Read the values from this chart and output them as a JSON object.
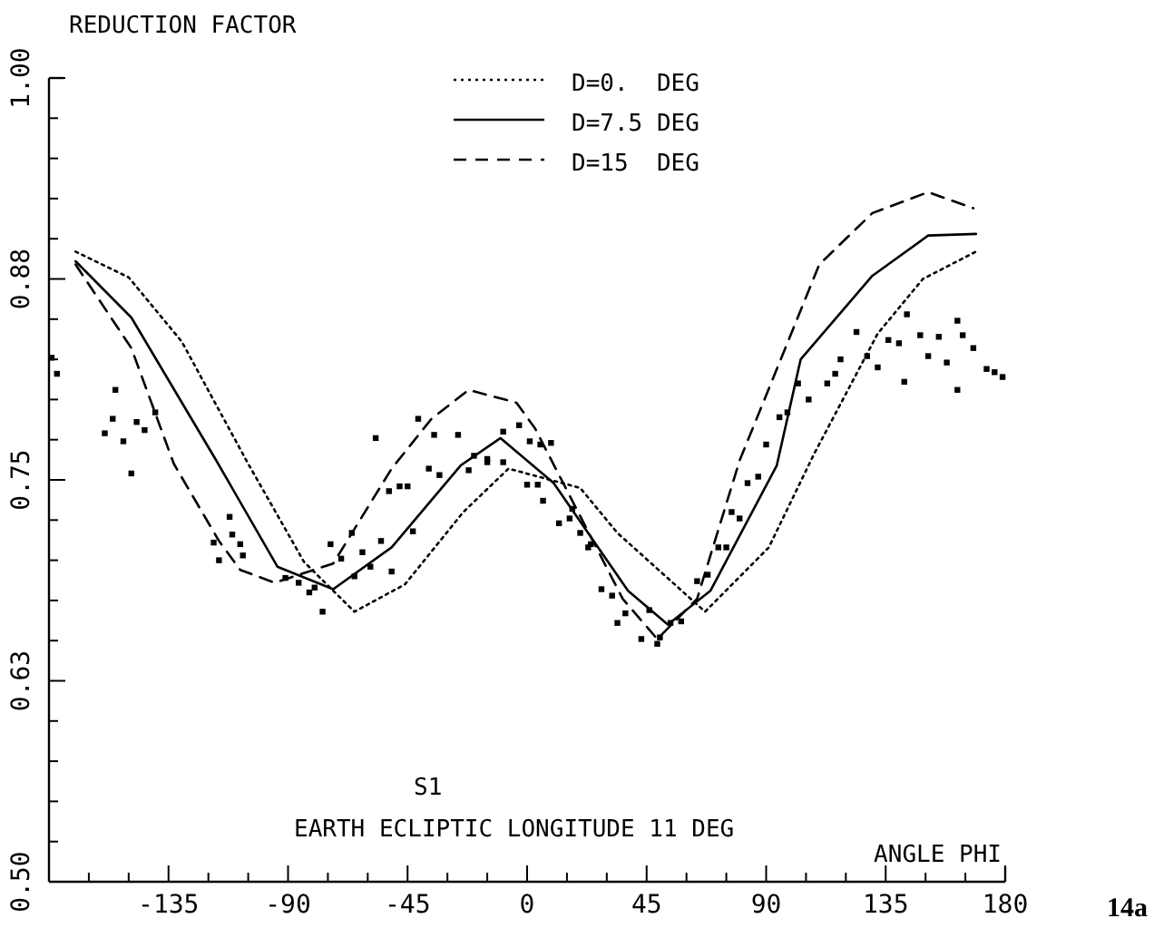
{
  "chart_data": {
    "type": "line",
    "ylabel": "REDUCTION FACTOR",
    "xlabel": "ANGLE PHI",
    "legend": "top",
    "grid": false,
    "annotations": [
      "S1",
      "EARTH ECLIPTIC LONGITUDE 11 DEG",
      "14a"
    ],
    "xlim": [
      -180,
      180
    ],
    "xticks": [
      {
        "value": -165,
        "label": null
      },
      {
        "value": -150,
        "label": null
      },
      -135,
      {
        "value": -120,
        "label": null
      },
      {
        "value": -105,
        "label": null
      },
      -90,
      {
        "value": -75,
        "label": null
      },
      {
        "value": -60,
        "label": null
      },
      -45,
      {
        "value": -30,
        "label": null
      },
      {
        "value": -15,
        "label": null
      },
      0,
      {
        "value": 15,
        "label": null
      },
      {
        "value": 30,
        "label": null
      },
      45,
      {
        "value": 60,
        "label": null
      },
      {
        "value": 75,
        "label": null
      },
      90,
      {
        "value": 105,
        "label": null
      },
      {
        "value": 120,
        "label": null
      },
      135,
      {
        "value": 150,
        "label": null
      },
      {
        "value": 165,
        "label": null
      },
      180
    ],
    "ylim": [
      0.5,
      1.0
    ],
    "yticks": [
      {
        "value": 0.5,
        "label": "0.50"
      },
      {
        "value": 0.525,
        "label": null
      },
      {
        "value": 0.55,
        "label": null
      },
      {
        "value": 0.575,
        "label": null
      },
      {
        "value": 0.6,
        "label": null
      },
      {
        "value": 0.625,
        "label": "0.63"
      },
      {
        "value": 0.65,
        "label": null
      },
      {
        "value": 0.675,
        "label": null
      },
      {
        "value": 0.7,
        "label": null
      },
      {
        "value": 0.725,
        "label": null
      },
      {
        "value": 0.75,
        "label": "0.75"
      },
      {
        "value": 0.775,
        "label": null
      },
      {
        "value": 0.8,
        "label": null
      },
      {
        "value": 0.825,
        "label": null
      },
      {
        "value": 0.85,
        "label": null
      },
      {
        "value": 0.875,
        "label": "0.88"
      },
      {
        "value": 0.9,
        "label": null
      },
      {
        "value": 0.925,
        "label": null
      },
      {
        "value": 0.95,
        "label": null
      },
      {
        "value": 0.975,
        "label": null
      },
      {
        "value": 1.0,
        "label": "1.00"
      }
    ],
    "series": [
      {
        "name": "D=0.  DEG",
        "line_style": "dotted",
        "color": "#000000",
        "x": [
          -170,
          -150,
          -130,
          -105,
          -84,
          -65,
          -46,
          -24,
          -7,
          20,
          34,
          67,
          91,
          108,
          132,
          149,
          169
        ],
        "values": [
          0.892,
          0.876,
          0.836,
          0.76,
          0.699,
          0.668,
          0.685,
          0.73,
          0.757,
          0.745,
          0.717,
          0.668,
          0.708,
          0.766,
          0.841,
          0.875,
          0.892
        ]
      },
      {
        "name": "D=7.5 DEG",
        "line_style": "solid",
        "color": "#000000",
        "x": [
          -170,
          -149,
          -117,
          -94,
          -73,
          -51,
          -25,
          -10,
          10,
          38,
          53,
          69,
          94,
          103,
          130,
          151,
          169
        ],
        "values": [
          0.886,
          0.851,
          0.762,
          0.696,
          0.682,
          0.708,
          0.759,
          0.776,
          0.748,
          0.681,
          0.66,
          0.681,
          0.759,
          0.825,
          0.877,
          0.902,
          0.903
        ]
      },
      {
        "name": "D=15  DEG",
        "line_style": "dashed",
        "color": "#000000",
        "x": [
          -170,
          -149,
          -133,
          -116,
          -108,
          -95,
          -73,
          -51,
          -36,
          -22,
          -4,
          3,
          36,
          49,
          64,
          80,
          110,
          130,
          151,
          168
        ],
        "values": [
          0.884,
          0.832,
          0.76,
          0.712,
          0.694,
          0.686,
          0.698,
          0.757,
          0.788,
          0.806,
          0.798,
          0.782,
          0.676,
          0.651,
          0.676,
          0.762,
          0.884,
          0.916,
          0.929,
          0.919
        ]
      },
      {
        "type": "scatter",
        "marker": "square",
        "color": "#000000",
        "x": [
          -179,
          -177,
          -155,
          -156,
          -159,
          -152,
          -147,
          -144,
          -140,
          -149,
          -112,
          -118,
          -116,
          -111,
          -108,
          -107,
          -91,
          -86,
          -82,
          -80,
          -77,
          -74,
          -70,
          -66,
          -65,
          -62,
          -59,
          -55,
          -51,
          -52,
          -48,
          -45,
          -43,
          -37,
          -33,
          -57,
          -41,
          -35,
          -26,
          -20,
          -15,
          -9,
          -3,
          1,
          5,
          9,
          -22,
          -15,
          -9,
          0,
          4,
          6,
          12,
          16,
          17,
          20,
          23,
          24,
          28,
          32,
          34,
          37,
          43,
          46,
          49,
          50,
          54,
          58,
          64,
          68,
          72,
          75,
          77,
          80,
          83,
          87,
          90,
          95,
          98,
          102,
          106,
          113,
          116,
          118,
          124,
          128,
          132,
          136,
          140,
          143,
          142,
          148,
          151,
          155,
          158,
          162,
          164,
          168,
          162,
          173,
          176,
          179
        ],
        "values": [
          0.826,
          0.816,
          0.806,
          0.788,
          0.779,
          0.774,
          0.786,
          0.781,
          0.792,
          0.754,
          0.727,
          0.711,
          0.7,
          0.716,
          0.71,
          0.703,
          0.689,
          0.686,
          0.68,
          0.683,
          0.668,
          0.71,
          0.701,
          0.717,
          0.69,
          0.705,
          0.696,
          0.712,
          0.693,
          0.743,
          0.746,
          0.746,
          0.718,
          0.757,
          0.753,
          0.776,
          0.788,
          0.778,
          0.778,
          0.765,
          0.763,
          0.78,
          0.784,
          0.774,
          0.772,
          0.773,
          0.756,
          0.761,
          0.761,
          0.747,
          0.747,
          0.737,
          0.723,
          0.726,
          0.732,
          0.717,
          0.708,
          0.71,
          0.682,
          0.678,
          0.661,
          0.667,
          0.651,
          0.669,
          0.648,
          0.652,
          0.661,
          0.662,
          0.687,
          0.691,
          0.708,
          0.708,
          0.73,
          0.726,
          0.748,
          0.752,
          0.772,
          0.789,
          0.792,
          0.81,
          0.8,
          0.81,
          0.816,
          0.825,
          0.842,
          0.827,
          0.82,
          0.837,
          0.835,
          0.853,
          0.811,
          0.84,
          0.827,
          0.839,
          0.823,
          0.849,
          0.84,
          0.832,
          0.806,
          0.819,
          0.817,
          0.814
        ]
      }
    ]
  }
}
